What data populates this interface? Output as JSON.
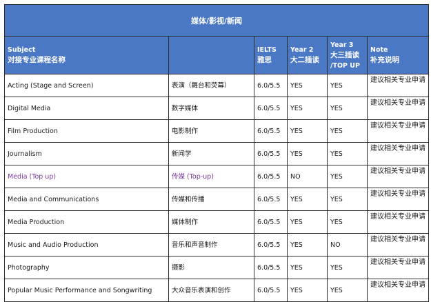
{
  "title": "媒体/影视/新闻",
  "headers": {
    "subject_en": "Subject",
    "subject_zh": "对接专业课程名称",
    "ielts_en": "IELTS",
    "ielts_zh": "雅思",
    "year2_en": "Year 2",
    "year2_zh": "大二插读",
    "year3_en": "Year 3",
    "year3_zh": "大三插读",
    "year3_sub": "/TOP UP",
    "note_en": "Note",
    "note_zh": "补充说明"
  },
  "rows": [
    {
      "subject": "Acting (Stage and Screen)",
      "zh": "表演（舞台和荧幕）",
      "ielts": "6.0/5.5",
      "year2": "YES",
      "year3": "YES",
      "note": "建议相关专业申请"
    },
    {
      "subject": "Digital Media",
      "zh": "数字媒体",
      "ielts": "6.0/5.5",
      "year2": "YES",
      "year3": "YES",
      "note": "建议相关专业申请"
    },
    {
      "subject": "Film Production",
      "zh": "电影制作",
      "ielts": "6.0/5.5",
      "year2": "YES",
      "year3": "YES",
      "note": "建议相关专业申请"
    },
    {
      "subject": "Journalism",
      "zh": "新闻学",
      "ielts": "6.0/5.5",
      "year2": "YES",
      "year3": "YES",
      "note": "建议相关专业申请"
    },
    {
      "subject": "Media (Top up)",
      "zh": "传媒 (Top-up)",
      "ielts": "6.0/5.5",
      "year2": "NO",
      "year3": "YES",
      "note": "建议相关专业申请"
    },
    {
      "subject": "Media and Communications",
      "zh": "传媒和传播",
      "ielts": "6.0/5.5",
      "year2": "YES",
      "year3": "YES",
      "note": "建议相关专业申请"
    },
    {
      "subject": "Media Production",
      "zh": "媒体制作",
      "ielts": "6.0/5.5",
      "year2": "YES",
      "year3": "YES",
      "note": "建议相关专业申请"
    },
    {
      "subject": "Music and Audio Production",
      "zh": "音乐和声音制作",
      "ielts": "6.0/5.5",
      "year2": "YES",
      "year3": "NO",
      "note": "建议相关专业申请"
    },
    {
      "subject": "Photography",
      "zh": "摄影",
      "ielts": "6.0/5.5",
      "year2": "YES",
      "year3": "YES",
      "note": "建议相关专业申请"
    },
    {
      "subject": "Popular Music Performance and Songwriting",
      "zh": "大众音乐表演和创作",
      "ielts": "6.0/5.5",
      "year2": "YES",
      "year3": "YES",
      "note": "建议相关专业申请"
    }
  ],
  "colors": {
    "header_bg": "#4a78c4",
    "highlight_text": "#7a3a9a"
  }
}
